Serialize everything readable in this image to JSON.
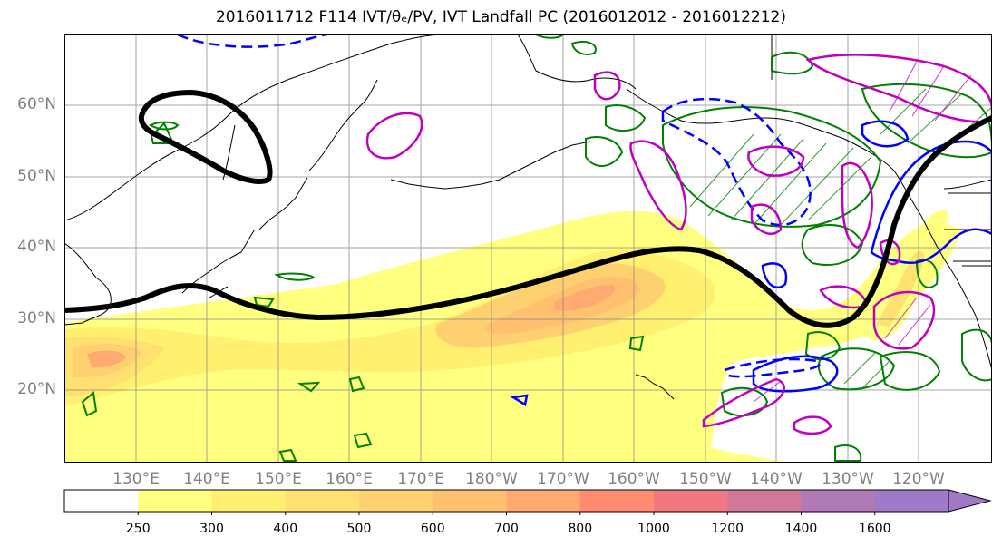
{
  "title": "2016011712 F114 IVT/θₑ/PV, IVT Landfall PC (2016012012 - 2016012212)",
  "map": {
    "lat_labels": [
      "60°N",
      "50°N",
      "40°N",
      "30°N",
      "20°N"
    ],
    "lon_labels": [
      "130°E",
      "140°E",
      "150°E",
      "160°E",
      "170°E",
      "180°W",
      "170°W",
      "160°W",
      "150°W",
      "140°W",
      "130°W",
      "120°W"
    ],
    "colors": {
      "grid": "#808080",
      "coast": "#000000",
      "thick_contour": "#000000",
      "pv_contour": "#008000",
      "theta_contour": "#0000ff",
      "ivt_anomaly_contour": "#c000c0",
      "label_color": "#808080"
    }
  },
  "colorbar": {
    "levels": [
      "250",
      "300",
      "400",
      "500",
      "600",
      "700",
      "800",
      "1000",
      "1200",
      "1400",
      "1600"
    ],
    "colors": [
      "#ffffff",
      "#ffff80",
      "#fff070",
      "#ffe070",
      "#ffd070",
      "#ffc070",
      "#ffaa70",
      "#ff8c70",
      "#f07880",
      "#d07898",
      "#b07ab8",
      "#a07ac8"
    ],
    "extend": "max"
  }
}
